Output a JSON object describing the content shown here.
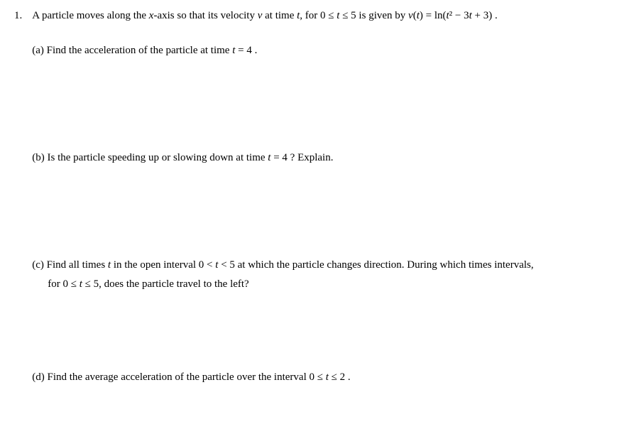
{
  "problem": {
    "number": "1.",
    "statement_pre": "A particle moves along the ",
    "statement_xaxis": "x",
    "statement_axis": "-axis so that its velocity ",
    "statement_v": " v ",
    "statement_mid1": " at time ",
    "statement_t1": "t",
    "statement_mid2": ", for  0 ≤ ",
    "statement_t2": "t",
    "statement_mid3": " ≤ 5  is given by  ",
    "statement_vt": "v",
    "statement_paren": "(",
    "statement_t3": "t",
    "statement_eq": ") = ln(",
    "statement_t4": "t",
    "statement_sq": "² − 3",
    "statement_t5": "t",
    "statement_end": " + 3) ."
  },
  "parts": {
    "a": {
      "label": "(a)  ",
      "text_pre": "Find the acceleration of the particle at time  ",
      "text_t": "t",
      "text_post": " = 4 ."
    },
    "b": {
      "label": "(b)  ",
      "text_pre": "Is the particle speeding up or slowing down at time ",
      "text_t": "t",
      "text_post": " = 4 ? Explain."
    },
    "c": {
      "label": "(c)  ",
      "text_pre": "Find all times ",
      "text_t1": "t",
      "text_mid1": " in the open interval  0 < ",
      "text_t2": "t",
      "text_mid2": " < 5  at which the particle changes direction. During which times intervals,",
      "line2_pre": "for 0 ≤ ",
      "line2_t": "t",
      "line2_post": " ≤ 5, does the particle travel to the left?"
    },
    "d": {
      "label": "(d)  ",
      "text_pre": "Find the average acceleration of the particle over the interval  0 ≤ ",
      "text_t": "t",
      "text_post": " ≤ 2 ."
    }
  }
}
